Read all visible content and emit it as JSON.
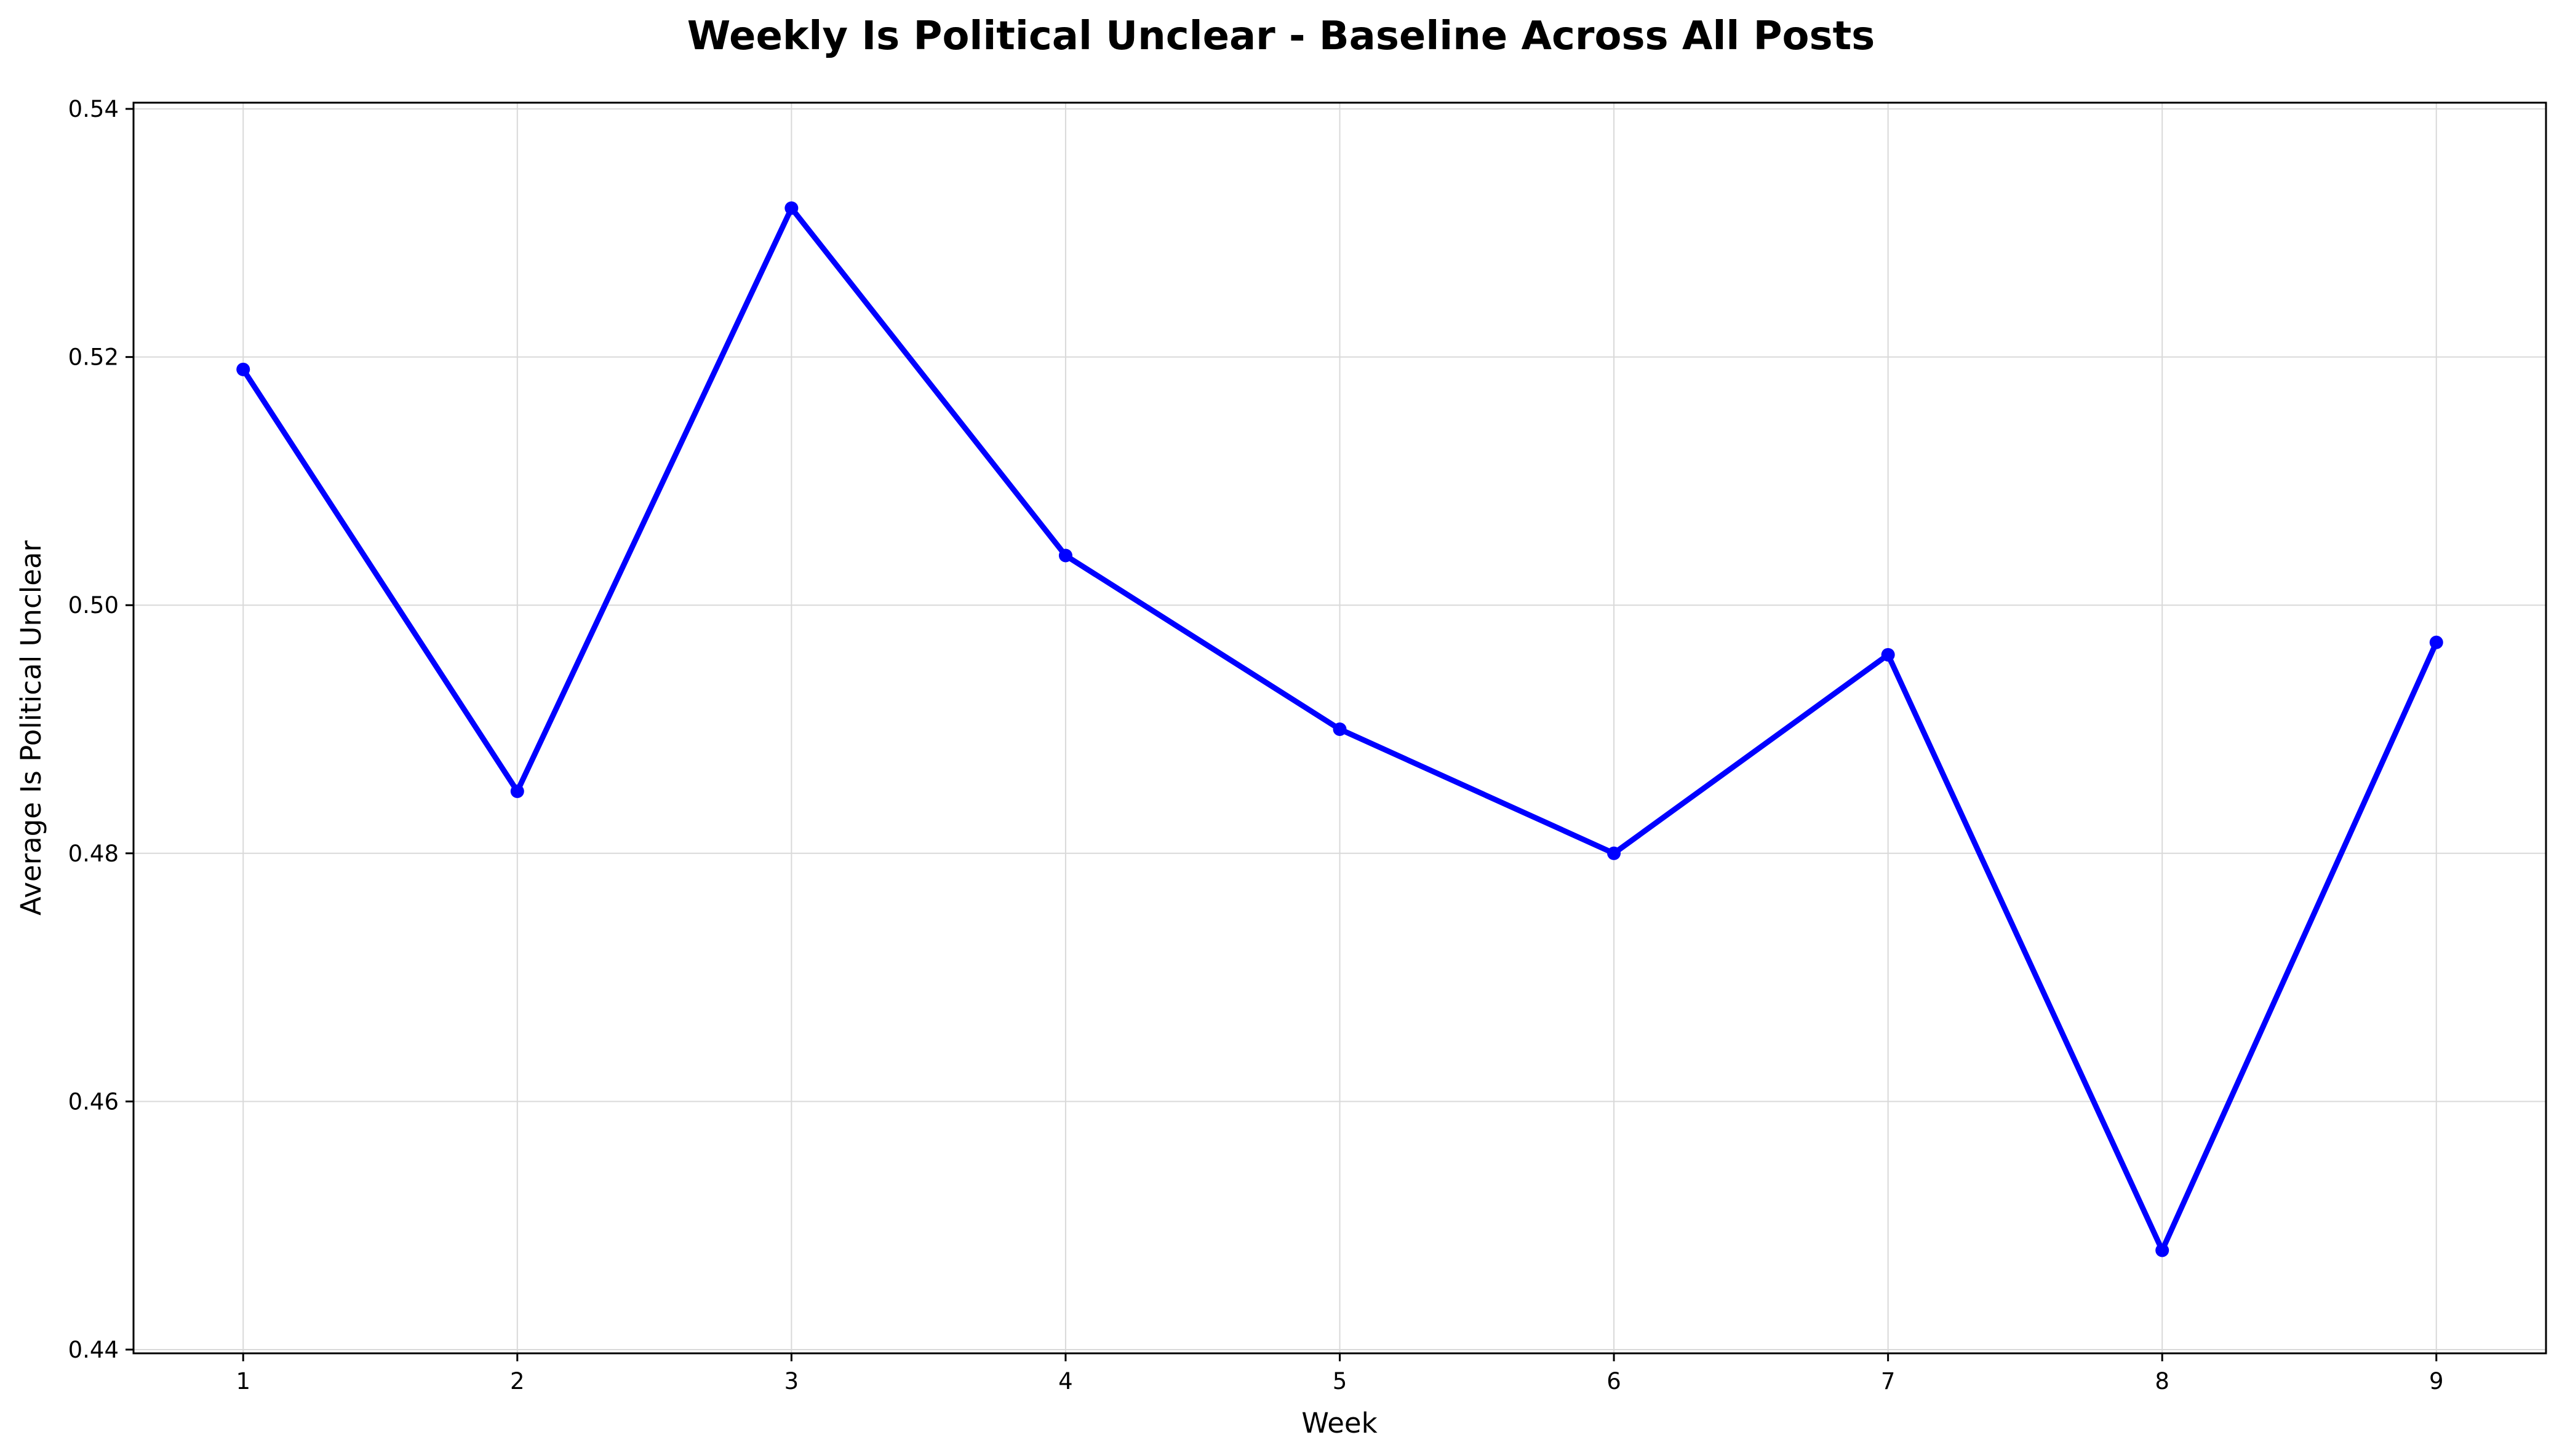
{
  "chart_data": {
    "type": "line",
    "title": "Weekly Is Political Unclear - Baseline Across All Posts",
    "xlabel": "Week",
    "ylabel": "Average Is Political Unclear",
    "x": [
      1,
      2,
      3,
      4,
      5,
      6,
      7,
      8,
      9
    ],
    "xticks": [
      "1",
      "2",
      "3",
      "4",
      "5",
      "6",
      "7",
      "8",
      "9"
    ],
    "xlim": [
      0.6,
      9.4
    ],
    "yticks": [
      "0.44",
      "0.46",
      "0.48",
      "0.50",
      "0.52",
      "0.54"
    ],
    "ylim": [
      0.4397,
      0.5405
    ],
    "grid": true,
    "series": [
      {
        "color": "#0000ff",
        "marker": "circle",
        "values": [
          0.519,
          0.485,
          0.532,
          0.504,
          0.49,
          0.48,
          0.496,
          0.448,
          0.497
        ]
      }
    ]
  }
}
